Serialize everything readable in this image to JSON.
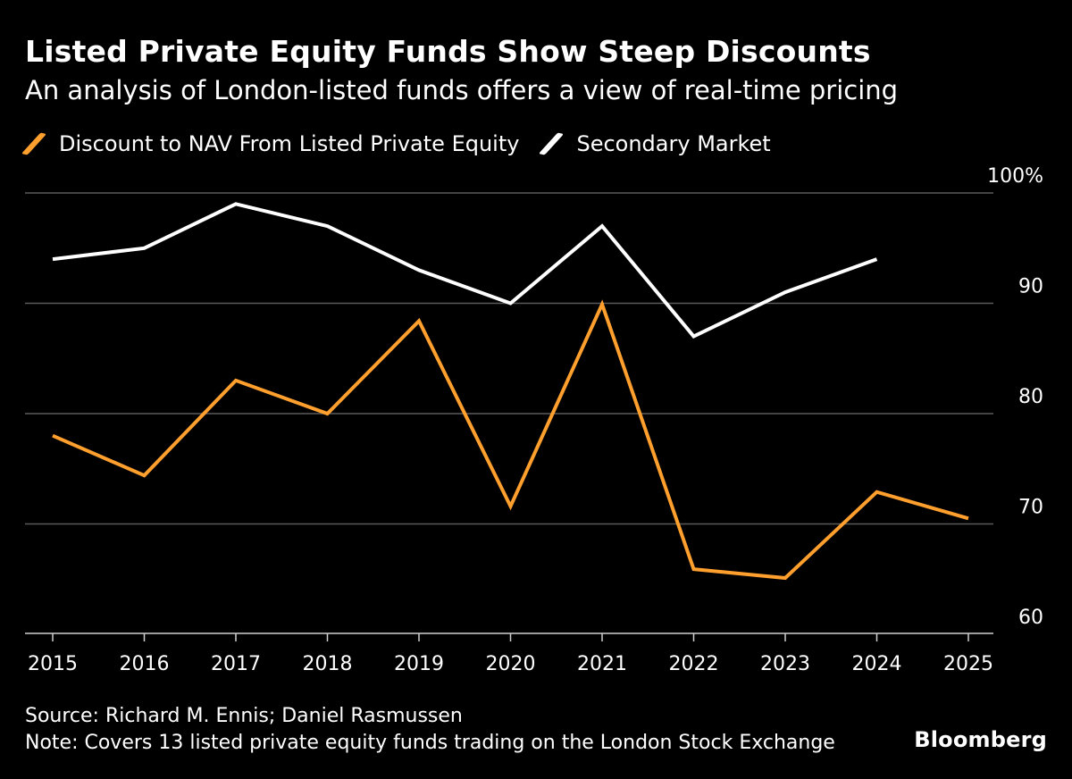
{
  "chart_data": {
    "type": "line",
    "title": "Listed Private Equity Funds Show Steep Discounts",
    "subtitle": "An analysis of London-listed funds offers a view of real-time pricing",
    "x": [
      "2015",
      "2016",
      "2017",
      "2018",
      "2019",
      "2020",
      "2021",
      "2022",
      "2023",
      "2024",
      "2025"
    ],
    "series": [
      {
        "name": "Discount to NAV From Listed Private Equity",
        "color": "#ff9f2e",
        "values": [
          78,
          74.4,
          83,
          80,
          88.4,
          71.6,
          89.9,
          65.9,
          65.1,
          72.9,
          70.5
        ]
      },
      {
        "name": "Secondary Market",
        "color": "#ffffff",
        "values": [
          94,
          95,
          99,
          97,
          93,
          90,
          97,
          87,
          91,
          94,
          null
        ]
      }
    ],
    "yticks": [
      100,
      90,
      80,
      70,
      60
    ],
    "ytick_labels": [
      "100%",
      "90",
      "80",
      "70",
      "60"
    ],
    "ylim": [
      59,
      100
    ],
    "gridlines": [
      100,
      90,
      80,
      70
    ],
    "xlabel": "",
    "ylabel": "",
    "axis_side": "right"
  },
  "footer": {
    "source": "Source: Richard M. Ennis; Daniel Rasmussen",
    "note": "Note: Covers 13 listed private equity funds trading on the London Stock Exchange",
    "brand": "Bloomberg"
  },
  "colors": {
    "background": "#000000",
    "grid": "#5a5a5a",
    "axis": "#d0d0d0"
  }
}
